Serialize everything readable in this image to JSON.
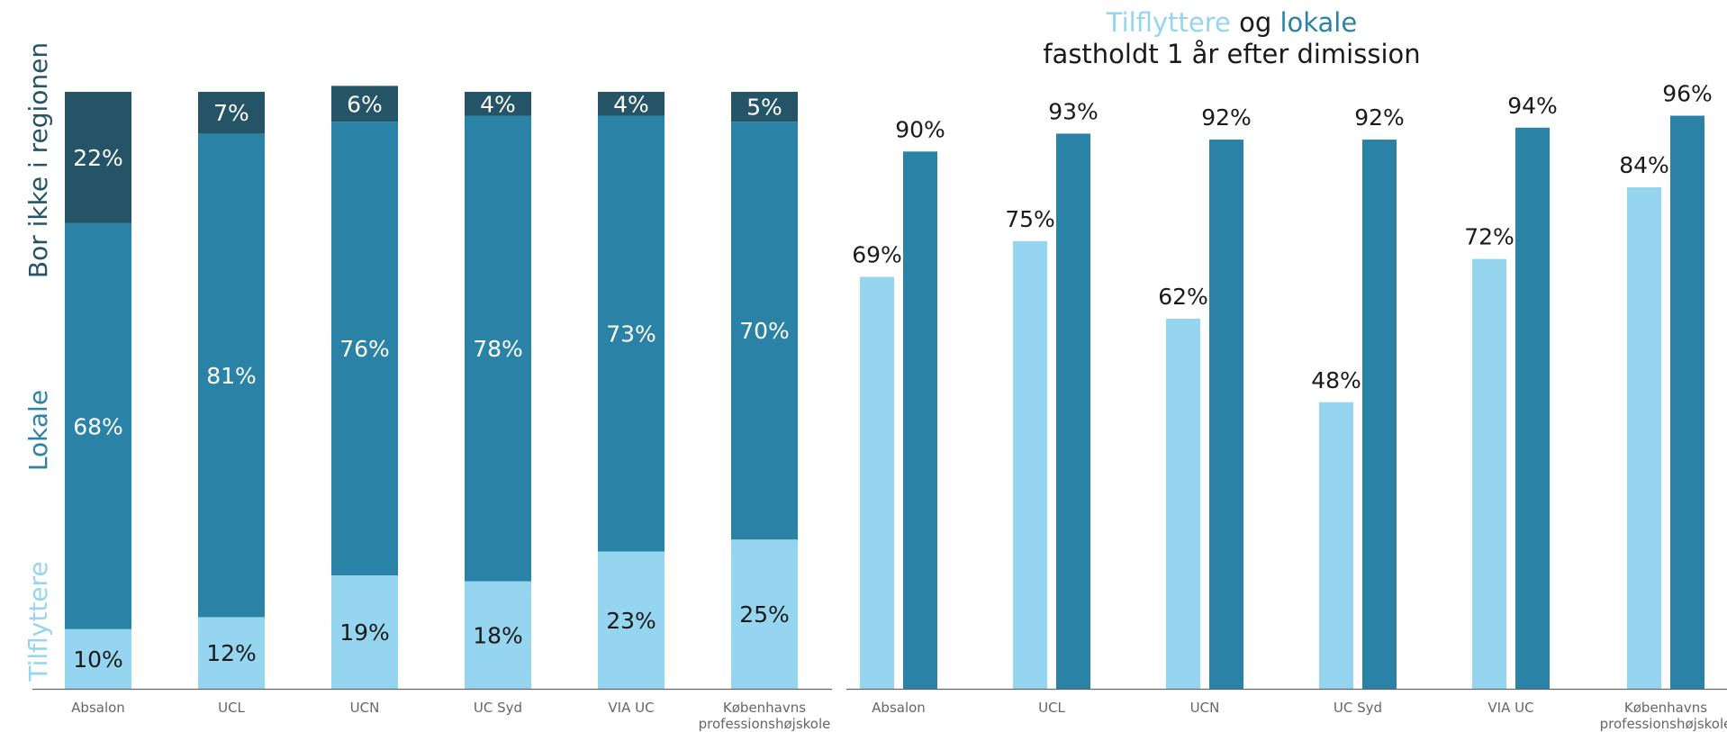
{
  "colors": {
    "tilflyttere": "#95d5ef",
    "lokale": "#2a83a6",
    "bor_ikke": "#255467",
    "text_dark": "#1a1a1a",
    "text_light": "#ffffff",
    "axis": "#666666",
    "tick_text": "#666666"
  },
  "chart_data": [
    {
      "type": "bar",
      "stacked": true,
      "categories": [
        "Absalon",
        "UCL",
        "UCN",
        "UC Syd",
        "VIA UC",
        [
          "Københavns",
          "professionshøjskole"
        ]
      ],
      "series": [
        {
          "name": "Tilflyttere",
          "values": [
            10,
            12,
            19,
            18,
            23,
            25
          ],
          "color": "#95d5ef"
        },
        {
          "name": "Lokale",
          "values": [
            68,
            81,
            76,
            78,
            73,
            70
          ],
          "color": "#2a83a6"
        },
        {
          "name": "Bor ikke i regionen",
          "values": [
            22,
            7,
            6,
            4,
            4,
            5
          ],
          "color": "#255467"
        }
      ],
      "ylim": [
        0,
        100
      ],
      "grid": false,
      "legend_placement": "left, rotated"
    },
    {
      "type": "bar",
      "title_parts": [
        "Tilflyttere",
        " og ",
        "lokale"
      ],
      "subtitle": "fastholdt 1 år efter dimission",
      "categories": [
        "Absalon",
        "UCL",
        "UCN",
        "UC Syd",
        "VIA UC",
        [
          "Københavns",
          "professionshøjskole"
        ]
      ],
      "series": [
        {
          "name": "Tilflyttere",
          "values": [
            69,
            75,
            62,
            48,
            72,
            84
          ],
          "color": "#95d5ef"
        },
        {
          "name": "lokale",
          "values": [
            90,
            93,
            92,
            92,
            94,
            96
          ],
          "color": "#2a83a6"
        }
      ],
      "ylim": [
        0,
        100
      ],
      "grid": false
    }
  ]
}
